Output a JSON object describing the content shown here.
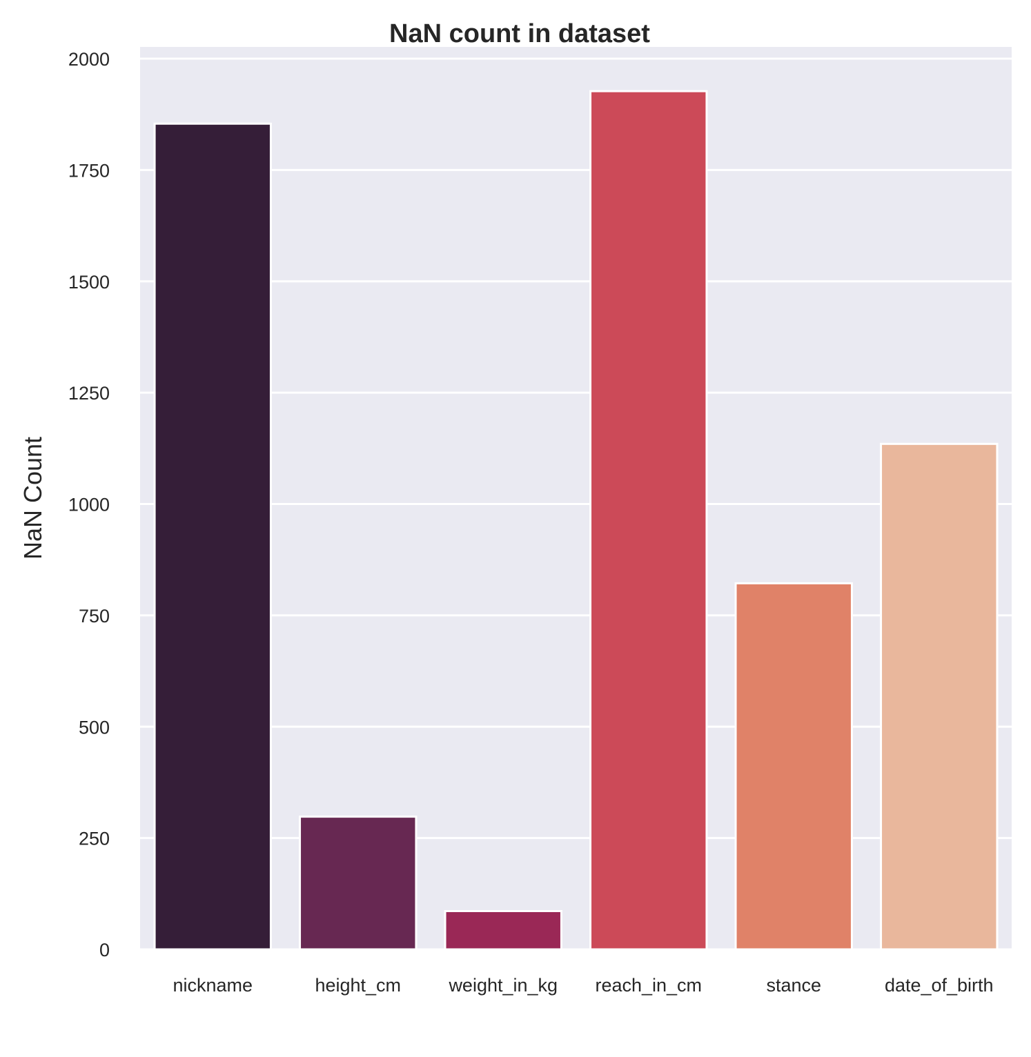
{
  "chart_data": {
    "type": "bar",
    "title": "NaN count in dataset",
    "xlabel": "",
    "ylabel": "NaN Count",
    "categories": [
      "nickname",
      "height_cm",
      "weight_in_kg",
      "reach_in_cm",
      "stance",
      "date_of_birth"
    ],
    "values": [
      1854,
      298,
      86,
      1927,
      822,
      1135
    ],
    "colors": [
      "#351e38",
      "#672852",
      "#9a2856",
      "#cc4a58",
      "#e08268",
      "#e9b79c"
    ],
    "ylim": [
      0,
      2020
    ],
    "yticks": [
      0,
      250,
      500,
      750,
      1000,
      1250,
      1500,
      1750,
      2000
    ],
    "grid": true,
    "background": "#eaeaf2"
  }
}
